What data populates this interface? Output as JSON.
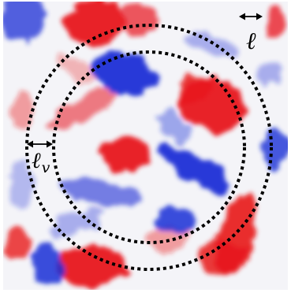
{
  "figure": {
    "field_colors": {
      "positive": "#e8151b",
      "negative": "#1b2fd6",
      "neutral": "#f4f4f8"
    },
    "circle_style": {
      "color": "#000000",
      "pattern": "dotted"
    },
    "labels": {
      "ell": "ℓ",
      "ell_v_main": "ℓ",
      "ell_v_sub": "v"
    }
  }
}
